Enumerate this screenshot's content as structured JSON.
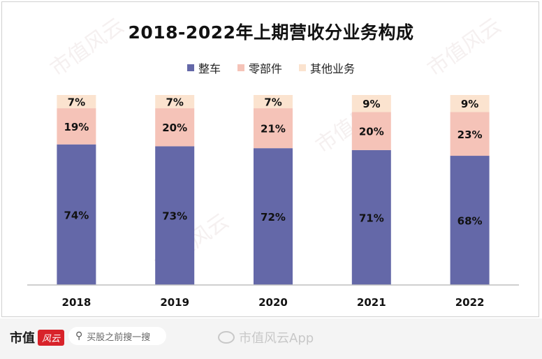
{
  "chart_data": {
    "type": "bar",
    "stacked": true,
    "title": "2018-2022年上期营收分业务构成",
    "categories": [
      "2018",
      "2019",
      "2020",
      "2021",
      "2022"
    ],
    "series": [
      {
        "name": "整车",
        "values": [
          74,
          73,
          72,
          71,
          68
        ],
        "labels": [
          "74%",
          "73%",
          "72%",
          "71%",
          "68%"
        ],
        "color": "#6468a8"
      },
      {
        "name": "零部件",
        "values": [
          19,
          20,
          21,
          20,
          23
        ],
        "labels": [
          "19%",
          "20%",
          "21%",
          "20%",
          "23%"
        ],
        "color": "#f5c3b8"
      },
      {
        "name": "其他业务",
        "values": [
          7,
          7,
          7,
          9,
          9
        ],
        "labels": [
          "7%",
          "7%",
          "7%",
          "9%",
          "9%"
        ],
        "color": "#fbe3cf"
      }
    ],
    "ylim": [
      0,
      100
    ],
    "grid": false,
    "legend_position": "top"
  },
  "footer": {
    "brand": "市值",
    "brand_badge": "风云",
    "search_placeholder": "买股之前搜一搜",
    "weibo_handle": "市值风云App"
  },
  "watermark_text": "市值风云",
  "colors": {
    "brand_red": "#d8232a"
  }
}
